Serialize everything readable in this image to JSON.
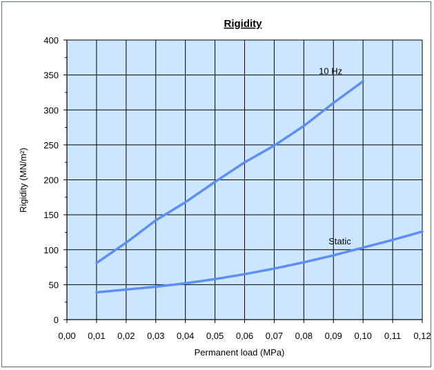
{
  "chart_data": {
    "type": "line",
    "title": "Rigidity",
    "xlabel": "Permanent load (MPa)",
    "ylabel": "Rigidity (MN/m²)",
    "xlim": [
      0,
      0.12
    ],
    "ylim": [
      0,
      400
    ],
    "x_ticks": [
      "0,00",
      "0,01",
      "0,02",
      "0,03",
      "0,04",
      "0,05",
      "0,06",
      "0,07",
      "0,08",
      "0,09",
      "0,10",
      "0,11",
      "0,12"
    ],
    "y_ticks": [
      "0",
      "50",
      "100",
      "150",
      "200",
      "250",
      "300",
      "350",
      "400"
    ],
    "grid": true,
    "plot_background": "#cce6ff",
    "series_color": "#5b8ff5",
    "series": [
      {
        "name": "10 Hz",
        "x": [
          0.01,
          0.02,
          0.03,
          0.04,
          0.05,
          0.06,
          0.07,
          0.08,
          0.09,
          0.1
        ],
        "y": [
          81,
          110,
          142,
          168,
          197,
          225,
          249,
          277,
          310,
          341
        ]
      },
      {
        "name": "Static",
        "x": [
          0.01,
          0.02,
          0.03,
          0.04,
          0.05,
          0.06,
          0.07,
          0.08,
          0.09,
          0.1,
          0.11,
          0.12
        ],
        "y": [
          39,
          43,
          47,
          52,
          58,
          65,
          73,
          82,
          92,
          103,
          114,
          126
        ]
      }
    ]
  }
}
